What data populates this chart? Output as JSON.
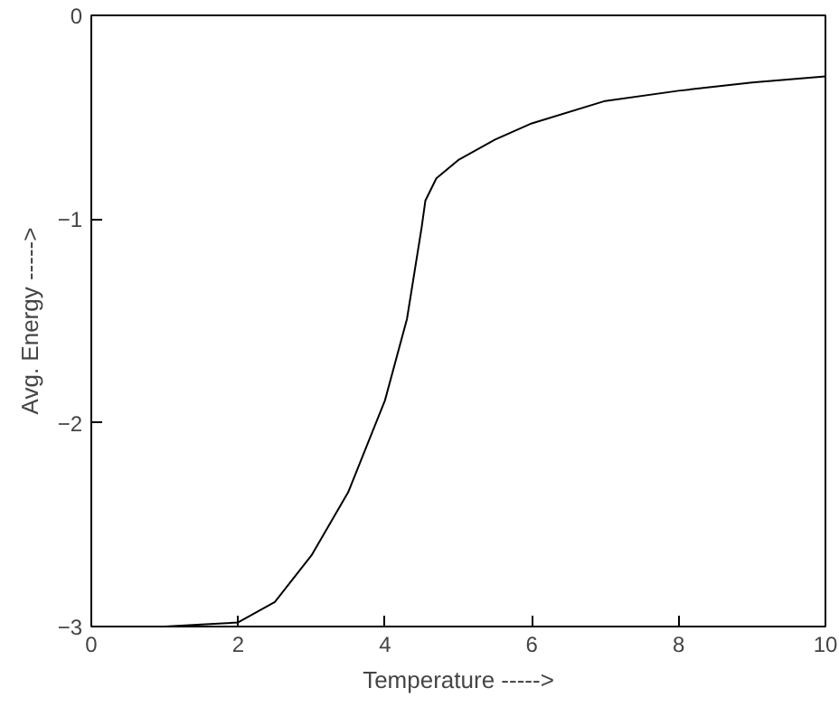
{
  "chart_data": {
    "type": "line",
    "xlabel": "Temperature ----->",
    "ylabel": "Avg. Energy ----->",
    "x": [
      0,
      0.5,
      1,
      1.5,
      2,
      2.5,
      3,
      3.5,
      4,
      4.3,
      4.5,
      4.55,
      4.7,
      5,
      5.5,
      6,
      7,
      8,
      9,
      10
    ],
    "series": [
      {
        "color": "#000000",
        "values": [
          -3,
          -3,
          -3,
          -2.99,
          -2.98,
          -2.88,
          -2.65,
          -2.34,
          -1.89,
          -1.49,
          -1.04,
          -0.91,
          -0.8,
          -0.71,
          -0.61,
          -0.53,
          -0.42,
          -0.37,
          -0.33,
          -0.3
        ]
      }
    ],
    "xlim": [
      0,
      10
    ],
    "ylim": [
      -3,
      0
    ],
    "xticks": [
      0,
      2,
      4,
      6,
      8,
      10
    ],
    "yticks": [
      -3,
      -2,
      -1,
      0
    ],
    "grid": false,
    "marker": "none",
    "line_style": "solid"
  }
}
